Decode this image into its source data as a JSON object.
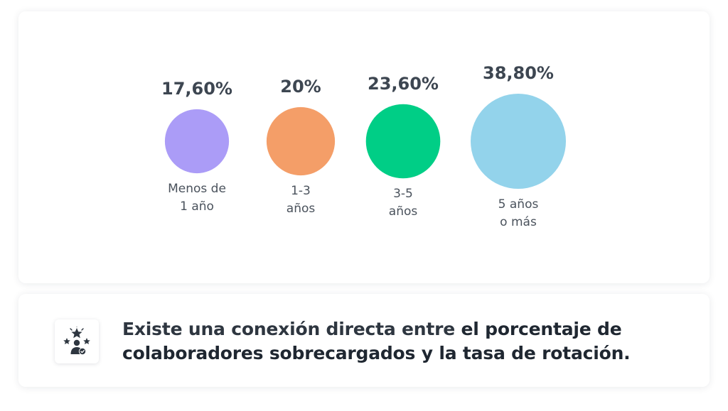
{
  "chart_data": {
    "type": "bubble",
    "categories": [
      "Menos de\n1 año",
      "1-3\naños",
      "3-5\naños",
      "5 años\no más"
    ],
    "values": [
      17.6,
      20,
      23.6,
      38.8
    ],
    "value_labels": [
      "17,60%",
      "20%",
      "23,60%",
      "38,80%"
    ],
    "unit": "%",
    "colors": [
      "#ab9cf7",
      "#f49e68",
      "#00ce86",
      "#93d3eb"
    ]
  },
  "note": {
    "icon": "star-rating-person-icon",
    "text_plain": "Existe una conexión directa entre ",
    "text_emph": "el porcentaje de colaboradores sobrecargados y la tasa de rotación."
  }
}
